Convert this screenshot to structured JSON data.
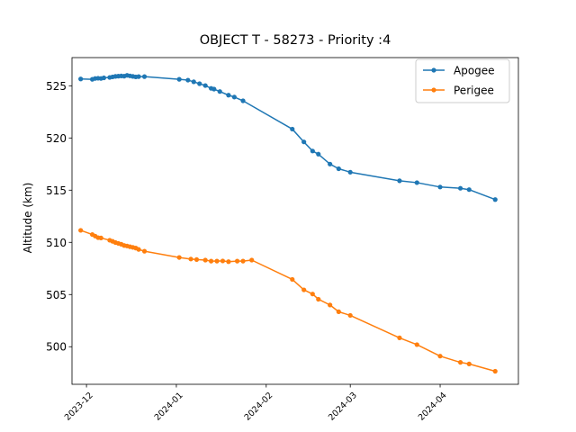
{
  "chart_data": {
    "type": "line",
    "title": "OBJECT T - 58273 - Priority :4",
    "xlabel": "",
    "ylabel": "Altitude (km)",
    "x_axis_type": "date",
    "xlim": [
      "2023-11-26",
      "2024-04-28"
    ],
    "ylim": [
      496.4,
      527.7
    ],
    "x_ticks": [
      {
        "date": "2023-12-01",
        "label": "2023-12"
      },
      {
        "date": "2024-01-01",
        "label": "2024-01"
      },
      {
        "date": "2024-02-01",
        "label": "2024-02"
      },
      {
        "date": "2024-03-01",
        "label": "2024-03"
      },
      {
        "date": "2024-04-01",
        "label": "2024-04"
      }
    ],
    "y_ticks": [
      500,
      505,
      510,
      515,
      520,
      525
    ],
    "grid": false,
    "legend_position": "top-right",
    "series": [
      {
        "name": "Apogee",
        "color": "#1f77b4",
        "marker": "circle",
        "points": [
          [
            "2023-11-29",
            525.65
          ],
          [
            "2023-12-03",
            525.62
          ],
          [
            "2023-12-04",
            525.7
          ],
          [
            "2023-12-05",
            525.72
          ],
          [
            "2023-12-06",
            525.7
          ],
          [
            "2023-12-07",
            525.76
          ],
          [
            "2023-12-09",
            525.8
          ],
          [
            "2023-12-10",
            525.85
          ],
          [
            "2023-12-11",
            525.9
          ],
          [
            "2023-12-12",
            525.92
          ],
          [
            "2023-12-13",
            525.94
          ],
          [
            "2023-12-14",
            525.92
          ],
          [
            "2023-12-15",
            526.0
          ],
          [
            "2023-12-16",
            525.95
          ],
          [
            "2023-12-17",
            525.9
          ],
          [
            "2023-12-18",
            525.85
          ],
          [
            "2023-12-19",
            525.88
          ],
          [
            "2023-12-21",
            525.88
          ],
          [
            "2024-01-02",
            525.62
          ],
          [
            "2024-01-05",
            525.54
          ],
          [
            "2024-01-07",
            525.38
          ],
          [
            "2024-01-09",
            525.2
          ],
          [
            "2024-01-11",
            525.02
          ],
          [
            "2024-01-13",
            524.75
          ],
          [
            "2024-01-14",
            524.68
          ],
          [
            "2024-01-16",
            524.45
          ],
          [
            "2024-01-19",
            524.1
          ],
          [
            "2024-01-21",
            523.92
          ],
          [
            "2024-01-24",
            523.56
          ],
          [
            "2024-02-10",
            520.85
          ],
          [
            "2024-02-14",
            519.62
          ],
          [
            "2024-02-17",
            518.75
          ],
          [
            "2024-02-19",
            518.45
          ],
          [
            "2024-02-23",
            517.5
          ],
          [
            "2024-02-26",
            517.05
          ],
          [
            "2024-03-01",
            516.72
          ],
          [
            "2024-03-18",
            515.9
          ],
          [
            "2024-03-24",
            515.72
          ],
          [
            "2024-04-01",
            515.3
          ],
          [
            "2024-04-08",
            515.18
          ],
          [
            "2024-04-11",
            515.05
          ],
          [
            "2024-04-20",
            514.1
          ]
        ]
      },
      {
        "name": "Perigee",
        "color": "#ff7f0e",
        "marker": "circle",
        "points": [
          [
            "2023-11-29",
            511.15
          ],
          [
            "2023-12-03",
            510.75
          ],
          [
            "2023-12-04",
            510.6
          ],
          [
            "2023-12-05",
            510.45
          ],
          [
            "2023-12-06",
            510.42
          ],
          [
            "2023-12-09",
            510.2
          ],
          [
            "2023-12-10",
            510.1
          ],
          [
            "2023-12-11",
            509.98
          ],
          [
            "2023-12-12",
            509.9
          ],
          [
            "2023-12-13",
            509.82
          ],
          [
            "2023-12-14",
            509.7
          ],
          [
            "2023-12-15",
            509.65
          ],
          [
            "2023-12-16",
            509.58
          ],
          [
            "2023-12-17",
            509.52
          ],
          [
            "2023-12-18",
            509.45
          ],
          [
            "2023-12-19",
            509.32
          ],
          [
            "2023-12-21",
            509.15
          ],
          [
            "2024-01-02",
            508.55
          ],
          [
            "2024-01-06",
            508.4
          ],
          [
            "2024-01-08",
            508.35
          ],
          [
            "2024-01-11",
            508.3
          ],
          [
            "2024-01-13",
            508.2
          ],
          [
            "2024-01-15",
            508.2
          ],
          [
            "2024-01-17",
            508.22
          ],
          [
            "2024-01-19",
            508.15
          ],
          [
            "2024-01-22",
            508.2
          ],
          [
            "2024-01-24",
            508.2
          ],
          [
            "2024-01-27",
            508.3
          ],
          [
            "2024-02-10",
            506.45
          ],
          [
            "2024-02-14",
            505.45
          ],
          [
            "2024-02-17",
            505.05
          ],
          [
            "2024-02-19",
            504.55
          ],
          [
            "2024-02-23",
            504.0
          ],
          [
            "2024-02-26",
            503.35
          ],
          [
            "2024-03-01",
            503.0
          ],
          [
            "2024-03-18",
            500.85
          ],
          [
            "2024-03-24",
            500.2
          ],
          [
            "2024-04-01",
            499.1
          ],
          [
            "2024-04-08",
            498.5
          ],
          [
            "2024-04-11",
            498.35
          ],
          [
            "2024-04-20",
            497.65
          ]
        ]
      }
    ]
  }
}
